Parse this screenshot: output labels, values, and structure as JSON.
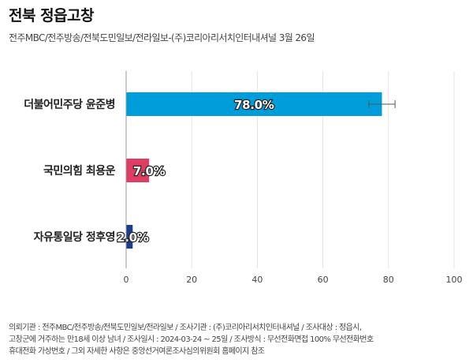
{
  "header": {
    "title": "전북 정읍고창",
    "subtitle": "전주MBC/전주방송/전북도민일보/전라일보-(주)코리아리서치인터내셔널 3월 26일"
  },
  "footer": {
    "lines": [
      "의뢰기관 : 전주MBC/전주방송/전북도민일보/전라일보 / 조사기관 : (주)코리아리서치인터내셔널 / 조사대상 : 정읍시,",
      "고창군에 거주하는 만18세 이상 남녀 / 조사일시 : 2024-03-24 ~ 25일 / 조사방식 : 무선전화면접 100% 무선전화번호",
      "휴대전화 가상번호 / 그외 자세한 사항은 중앙선거여론조사심의위원회 홈페이지 참조"
    ]
  },
  "colors": {
    "grid": "#e3e3e3",
    "axis": "#999999",
    "error_bar": "#555555"
  },
  "chart_data": {
    "type": "bar",
    "orientation": "horizontal",
    "categories": [
      "더불어민주당 윤준병",
      "국민의힘 최용운",
      "자유통일당 정후영"
    ],
    "values": [
      78.0,
      7.0,
      2.0
    ],
    "data_labels": [
      "78.0%",
      "7.0%",
      "2.0%"
    ],
    "colors": [
      "#009ddb",
      "#e03d63",
      "#1a3d8f"
    ],
    "error_margin": [
      4.0,
      3.5,
      0
    ],
    "xlim": [
      0,
      100
    ],
    "xticks": [
      0,
      20,
      40,
      60,
      80,
      100
    ],
    "grid": true,
    "legend": "none"
  }
}
